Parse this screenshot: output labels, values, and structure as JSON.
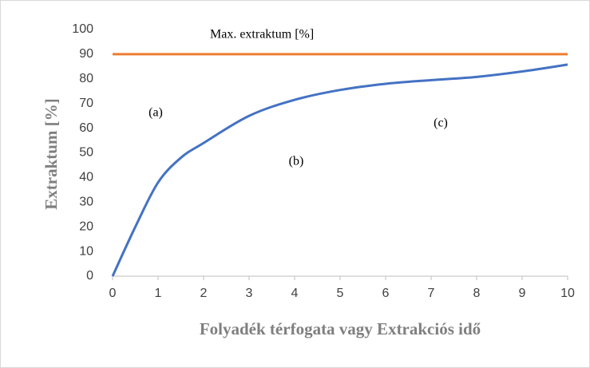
{
  "chart_data": {
    "type": "line",
    "xlabel": "Folyadék térfogata vagy Extrakciós idő",
    "ylabel": "Extraktum [%]",
    "annotations": [
      "(a)",
      "(b)",
      "(c)"
    ],
    "series": [
      {
        "color": "#4472c4",
        "x": [
          0,
          0.5,
          1,
          1.5,
          2,
          3,
          4,
          5,
          6,
          7,
          8,
          9,
          10
        ],
        "values": [
          0,
          20,
          38,
          48,
          54,
          65,
          71.5,
          75.5,
          78,
          79.5,
          80.8,
          83,
          85.8
        ]
      },
      {
        "name": "Max. extraktum [%]",
        "color": "#ed7d31",
        "x": [
          0,
          10
        ],
        "values": [
          90,
          90
        ]
      }
    ],
    "xlim": [
      0,
      10
    ],
    "xticks": [
      0,
      1,
      2,
      3,
      4,
      5,
      6,
      7,
      8,
      9,
      10
    ],
    "ylim": [
      0,
      100
    ],
    "yticks": [
      0,
      10,
      20,
      30,
      40,
      50,
      60,
      70,
      80,
      90,
      100
    ],
    "grid": false
  }
}
